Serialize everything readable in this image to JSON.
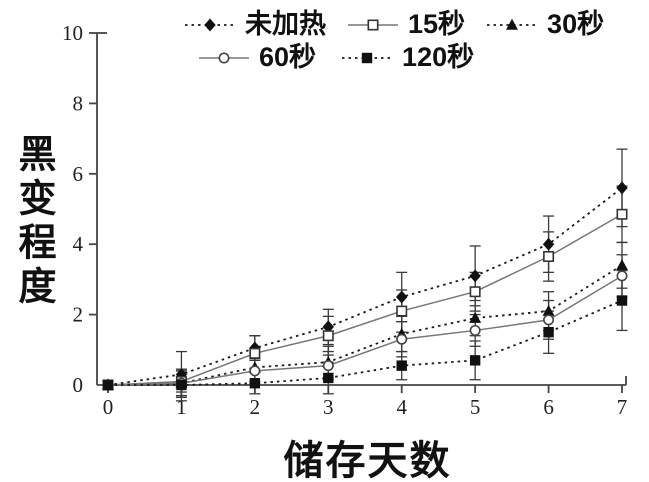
{
  "chart_data": {
    "type": "line",
    "title": "",
    "xlabel": "储存天数",
    "ylabel": "黑变程度",
    "x": [
      0,
      1,
      2,
      3,
      4,
      5,
      6,
      7
    ],
    "xticks": [
      0,
      1,
      2,
      3,
      4,
      5,
      6,
      7
    ],
    "yticks": [
      0,
      2,
      4,
      6,
      8,
      10
    ],
    "xlim": [
      0,
      7
    ],
    "ylim": [
      0,
      10
    ],
    "grid": false,
    "legend_position": "top",
    "error_bars": true,
    "colors": {
      "foreground": "#111111",
      "solid_line": "#777777",
      "dotted_line": "#1a1a1a",
      "error_bar": "#3a3a3a",
      "background": "#ffffff"
    },
    "series": [
      {
        "name": "未加热",
        "marker": "diamond-filled",
        "line": "dotted",
        "values": [
          0,
          0.3,
          1.05,
          1.65,
          2.5,
          3.1,
          4.0,
          5.6
        ],
        "errors": [
          0,
          0.65,
          0.35,
          0.5,
          0.7,
          0.85,
          0.8,
          1.1
        ]
      },
      {
        "name": "15秒",
        "marker": "square-open",
        "line": "solid",
        "values": [
          0,
          0.1,
          0.9,
          1.4,
          2.1,
          2.65,
          3.65,
          4.85
        ],
        "errors": [
          0,
          0.3,
          0.5,
          0.55,
          0.6,
          0.55,
          0.7,
          0.8
        ]
      },
      {
        "name": "30秒",
        "marker": "triangle-filled",
        "line": "dotted",
        "values": [
          0,
          0.05,
          0.5,
          0.65,
          1.45,
          1.9,
          2.1,
          3.4
        ],
        "errors": [
          0,
          0.4,
          0.4,
          0.45,
          0.5,
          0.5,
          0.55,
          0.65
        ]
      },
      {
        "name": "60秒",
        "marker": "circle-open",
        "line": "solid",
        "values": [
          0,
          0.05,
          0.4,
          0.55,
          1.3,
          1.55,
          1.85,
          3.1
        ],
        "errors": [
          0,
          0.35,
          0.35,
          0.4,
          0.5,
          0.45,
          0.55,
          0.6
        ]
      },
      {
        "name": "120秒",
        "marker": "square-filled",
        "line": "dotted",
        "values": [
          0,
          0,
          0.05,
          0.2,
          0.55,
          0.7,
          1.5,
          2.4
        ],
        "errors": [
          0,
          0.45,
          0.3,
          0.45,
          0.4,
          0.55,
          0.6,
          0.85
        ]
      }
    ]
  }
}
